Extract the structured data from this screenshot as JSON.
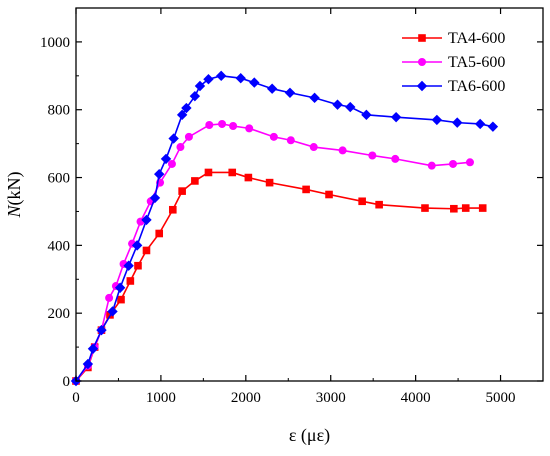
{
  "chart_data": {
    "type": "line",
    "xlabel": "ε (με)",
    "ylabel_italic": "N",
    "ylabel_rest": "(kN)",
    "xlim": [
      0,
      5500
    ],
    "ylim": [
      0,
      1100
    ],
    "x_ticks": [
      0,
      1000,
      2000,
      3000,
      4000,
      5000
    ],
    "y_ticks": [
      0,
      200,
      400,
      600,
      800,
      1000
    ],
    "legend_position": "top-right",
    "grid": false,
    "series": [
      {
        "name": "TA4-600",
        "color": "#ff0000",
        "marker": "square",
        "x": [
          0,
          140,
          220,
          300,
          400,
          530,
          640,
          730,
          830,
          980,
          1140,
          1250,
          1400,
          1560,
          1840,
          2030,
          2280,
          2710,
          2980,
          3370,
          3570,
          4110,
          4450,
          4590,
          4790
        ],
        "y": [
          0,
          40,
          100,
          150,
          195,
          240,
          295,
          340,
          385,
          435,
          505,
          560,
          590,
          615,
          615,
          600,
          585,
          565,
          550,
          530,
          520,
          510,
          508,
          510,
          510
        ]
      },
      {
        "name": "TA5-600",
        "color": "#ff00ff",
        "marker": "circle",
        "x": [
          0,
          140,
          220,
          300,
          390,
          470,
          560,
          660,
          760,
          880,
          990,
          1130,
          1230,
          1330,
          1570,
          1720,
          1850,
          2040,
          2330,
          2530,
          2800,
          3140,
          3490,
          3760,
          4190,
          4440,
          4640
        ],
        "y": [
          0,
          45,
          100,
          150,
          245,
          280,
          345,
          405,
          470,
          530,
          585,
          640,
          690,
          720,
          755,
          758,
          752,
          745,
          720,
          710,
          690,
          680,
          665,
          655,
          635,
          640,
          645
        ],
        "y_fix": [
          0,
          45,
          100,
          150,
          245,
          280,
          345,
          405,
          470,
          530,
          585,
          640,
          690,
          720,
          755,
          758,
          752,
          745,
          720,
          710,
          690,
          680,
          665,
          655,
          635,
          640,
          645
        ]
      },
      {
        "name": "TA6-600",
        "color": "#0000ff",
        "marker": "diamond",
        "x": [
          0,
          140,
          200,
          300,
          430,
          520,
          620,
          720,
          830,
          930,
          980,
          1060,
          1150,
          1250,
          1300,
          1400,
          1460,
          1560,
          1710,
          1940,
          2100,
          2310,
          2520,
          2810,
          3080,
          3230,
          3420,
          3770,
          4250,
          4490,
          4760,
          4910
        ],
        "y": [
          0,
          50,
          95,
          150,
          205,
          275,
          340,
          400,
          475,
          540,
          610,
          655,
          715,
          785,
          805,
          840,
          870,
          890,
          900,
          893,
          880,
          862,
          850,
          835,
          815,
          808,
          785,
          778,
          770,
          762,
          758,
          750
        ]
      }
    ]
  }
}
